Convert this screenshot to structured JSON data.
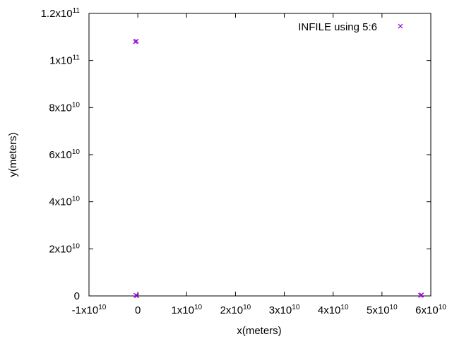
{
  "chart_data": {
    "type": "scatter",
    "xlabel": "x(meters)",
    "ylabel": "y(meters)",
    "xlim": [
      -10000000000,
      60000000000
    ],
    "ylim": [
      0,
      120000000000
    ],
    "grid": false,
    "legend_position": "top-right",
    "x_ticks": [
      {
        "value": -10000000000,
        "mantissa": "-1x10",
        "exp": "10"
      },
      {
        "value": 0,
        "mantissa": "0",
        "exp": ""
      },
      {
        "value": 10000000000,
        "mantissa": "1x10",
        "exp": "10"
      },
      {
        "value": 20000000000,
        "mantissa": "2x10",
        "exp": "10"
      },
      {
        "value": 30000000000,
        "mantissa": "3x10",
        "exp": "10"
      },
      {
        "value": 40000000000,
        "mantissa": "4x10",
        "exp": "10"
      },
      {
        "value": 50000000000,
        "mantissa": "5x10",
        "exp": "10"
      },
      {
        "value": 60000000000,
        "mantissa": "6x10",
        "exp": "10"
      }
    ],
    "y_ticks": [
      {
        "value": 0,
        "mantissa": "0",
        "exp": ""
      },
      {
        "value": 20000000000,
        "mantissa": "2x10",
        "exp": "10"
      },
      {
        "value": 40000000000,
        "mantissa": "4x10",
        "exp": "10"
      },
      {
        "value": 60000000000,
        "mantissa": "6x10",
        "exp": "10"
      },
      {
        "value": 80000000000,
        "mantissa": "8x10",
        "exp": "10"
      },
      {
        "value": 100000000000,
        "mantissa": "1x10",
        "exp": "11"
      },
      {
        "value": 120000000000,
        "mantissa": "1.2x10",
        "exp": "11"
      }
    ],
    "series": [
      {
        "name": "INFILE using 5:6",
        "color": "#9400d3",
        "marker": "x",
        "points": [
          {
            "x": -500000000,
            "y": 108000000000
          },
          {
            "x": -300000000,
            "y": 108200000000
          },
          {
            "x": -400000000,
            "y": 300000000
          },
          {
            "x": -200000000,
            "y": 100000000
          },
          {
            "x": 57900000000,
            "y": 200000000
          },
          {
            "x": 58100000000,
            "y": 400000000
          }
        ]
      }
    ]
  }
}
